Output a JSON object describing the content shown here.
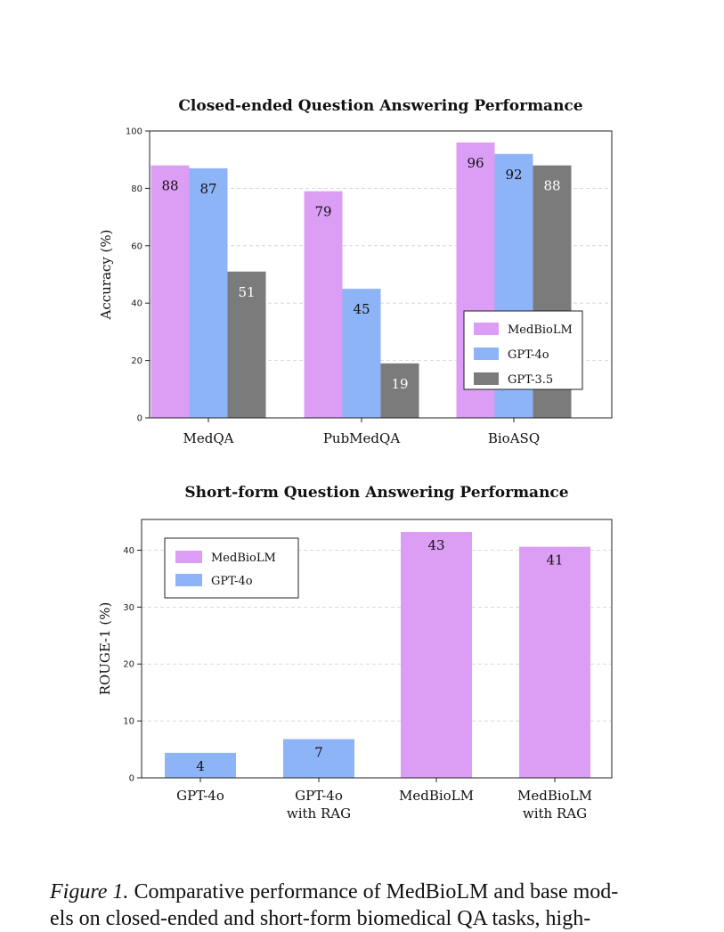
{
  "colors": {
    "MedBioLM": "#dc9df5",
    "GPT-4o": "#8db4f7",
    "GPT-3.5": "#7b7b7b"
  },
  "chart_data": [
    {
      "type": "bar",
      "title": "Closed-ended Question Answering Performance",
      "xlabel": "",
      "ylabel": "Accuracy (%)",
      "ylim": [
        0,
        100
      ],
      "yticks": [
        0,
        20,
        40,
        60,
        80,
        100
      ],
      "categories": [
        "MedQA",
        "PubMedQA",
        "BioASQ"
      ],
      "series": [
        {
          "name": "MedBioLM",
          "values": [
            88,
            79,
            96
          ],
          "labels": [
            "88",
            "79",
            "96"
          ]
        },
        {
          "name": "GPT-4o",
          "values": [
            87,
            45,
            92
          ],
          "labels": [
            "87",
            "45",
            "92"
          ]
        },
        {
          "name": "GPT-3.5",
          "values": [
            51,
            19,
            88
          ],
          "labels": [
            "51",
            "19",
            "88"
          ]
        }
      ],
      "grid": true,
      "legend_position": "lower-right"
    },
    {
      "type": "bar",
      "title": "Short-form Question Answering Performance",
      "xlabel": "",
      "ylabel": "ROUGE-1 (%)",
      "ylim": [
        0,
        45.4
      ],
      "yticks": [
        0,
        10,
        20,
        30,
        40
      ],
      "categories": [
        [
          "GPT-4o"
        ],
        [
          "GPT-4o",
          "with RAG"
        ],
        [
          "MedBioLM"
        ],
        [
          "MedBioLM",
          "with RAG"
        ]
      ],
      "values": [
        4.4,
        6.8,
        43.2,
        40.6
      ],
      "labels": [
        "4",
        "7",
        "43",
        "41"
      ],
      "bar_series": [
        "GPT-4o",
        "GPT-4o",
        "MedBioLM",
        "MedBioLM"
      ],
      "legend": [
        "MedBioLM",
        "GPT-4o"
      ],
      "grid": true,
      "legend_position": "upper-left"
    }
  ],
  "caption": {
    "lead": "Figure 1.",
    "line1": " Comparative performance of MedBioLM and base mod-",
    "line2": "els on closed-ended and short-form biomedical QA tasks, high-"
  }
}
